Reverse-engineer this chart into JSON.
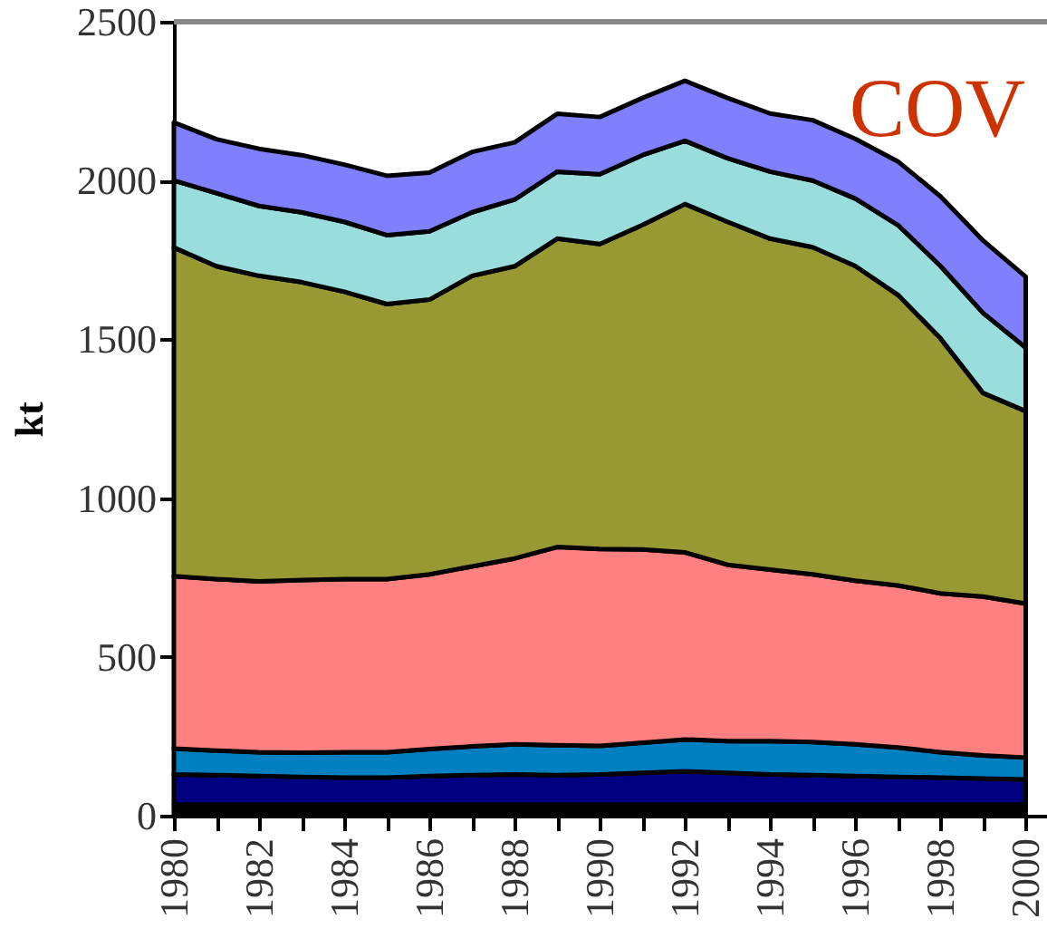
{
  "chart_data": {
    "type": "area",
    "stacked": true,
    "ylabel": "kt",
    "annotations": [
      "COV"
    ],
    "x": [
      1980,
      1981,
      1982,
      1983,
      1984,
      1985,
      1986,
      1987,
      1988,
      1989,
      1990,
      1991,
      1992,
      1993,
      1994,
      1995,
      1996,
      1997,
      1998,
      1999,
      2000
    ],
    "xlim": [
      1980,
      2000.5
    ],
    "xticks": [
      1980,
      {
        "value": 1981,
        "label": null
      },
      1982,
      {
        "value": 1983,
        "label": null
      },
      1984,
      {
        "value": 1985,
        "label": null
      },
      1986,
      {
        "value": 1987,
        "label": null
      },
      1988,
      {
        "value": 1989,
        "label": null
      },
      1990,
      {
        "value": 1991,
        "label": null
      },
      1992,
      {
        "value": 1993,
        "label": null
      },
      1994,
      {
        "value": 1995,
        "label": null
      },
      1996,
      {
        "value": 1997,
        "label": null
      },
      1998,
      {
        "value": 1999,
        "label": null
      },
      2000
    ],
    "ylim": [
      0,
      2500
    ],
    "yticks": [
      0,
      500,
      1000,
      1500,
      2000,
      2500
    ],
    "series": [
      {
        "color": "#cc00cc",
        "values": [
          0,
          0,
          0,
          0,
          0,
          0,
          0,
          0,
          0,
          0,
          0,
          0,
          10,
          5,
          10,
          10,
          10,
          10,
          10,
          10,
          15
        ]
      },
      {
        "color": "#000000",
        "values": [
          35,
          35,
          35,
          35,
          35,
          35,
          35,
          35,
          35,
          35,
          35,
          35,
          25,
          30,
          25,
          25,
          25,
          25,
          25,
          25,
          20
        ]
      },
      {
        "color": "#000080",
        "values": [
          95,
          93,
          90,
          87,
          85,
          85,
          90,
          93,
          95,
          93,
          95,
          100,
          105,
          100,
          95,
          93,
          90,
          87,
          85,
          82,
          79
        ]
      },
      {
        "color": "#0080c0",
        "values": [
          81,
          77,
          75,
          76,
          80,
          80,
          85,
          90,
          95,
          94,
          90,
          95,
          100,
          100,
          105,
          104,
          100,
          93,
          80,
          73,
          69
        ]
      },
      {
        "color": "#ff8080",
        "values": [
          543,
          540,
          538,
          544,
          545,
          545,
          550,
          567,
          585,
          624,
          620,
          608,
          589,
          555,
          540,
          528,
          515,
          510,
          500,
          500,
          485
        ]
      },
      {
        "color": "#999933",
        "values": [
          1035,
          985,
          962,
          938,
          905,
          866,
          865,
          915,
          920,
          971,
          960,
          1022,
          1097,
          1080,
          1042,
          1030,
          991,
          915,
          803,
          641,
          606
        ]
      },
      {
        "color": "#99dddd",
        "values": [
          211,
          230,
          220,
          220,
          220,
          217,
          215,
          200,
          210,
          211,
          220,
          220,
          199,
          200,
          211,
          210,
          212,
          220,
          228,
          252,
          200
        ]
      },
      {
        "color": "#8080ff",
        "values": [
          183,
          170,
          180,
          180,
          180,
          187,
          185,
          190,
          180,
          182,
          180,
          180,
          189,
          190,
          183,
          190,
          188,
          200,
          219,
          228,
          223
        ]
      }
    ]
  }
}
